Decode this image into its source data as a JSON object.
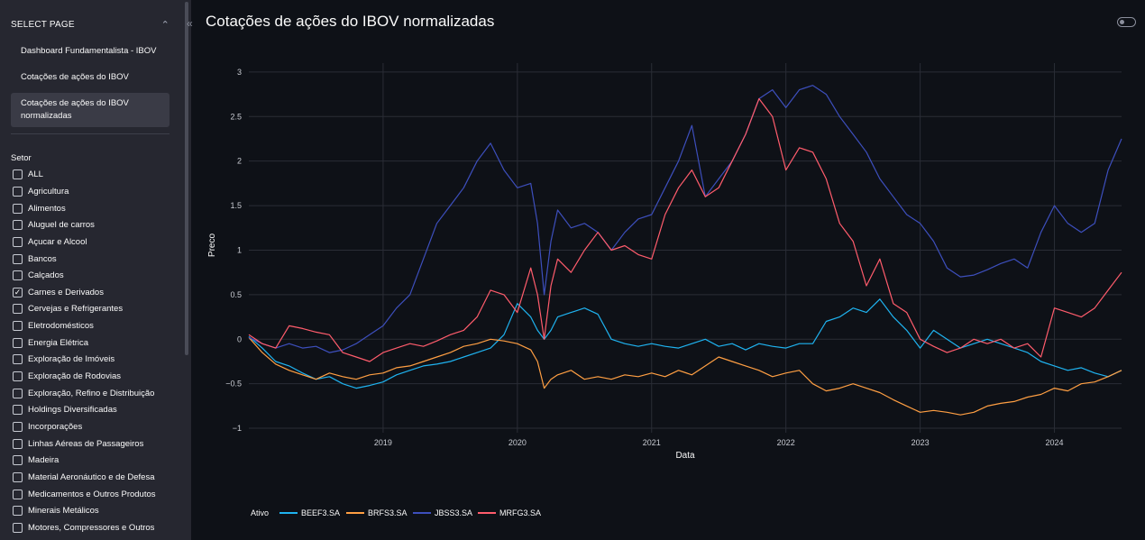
{
  "sidebar": {
    "header": "SELECT PAGE",
    "pages": [
      {
        "label": "Dashboard Fundamentalista - IBOV"
      },
      {
        "label": "Cotações de ações do IBOV"
      },
      {
        "label": "Cotações de ações do IBOV normalizadas"
      }
    ],
    "active_page_index": 2,
    "filter_label": "Setor",
    "sectors": [
      {
        "label": "ALL",
        "checked": false
      },
      {
        "label": "Agricultura",
        "checked": false
      },
      {
        "label": "Alimentos",
        "checked": false
      },
      {
        "label": "Aluguel de carros",
        "checked": false
      },
      {
        "label": "Açucar e Alcool",
        "checked": false
      },
      {
        "label": "Bancos",
        "checked": false
      },
      {
        "label": "Calçados",
        "checked": false
      },
      {
        "label": "Carnes e Derivados",
        "checked": true
      },
      {
        "label": "Cervejas e Refrigerantes",
        "checked": false
      },
      {
        "label": "Eletrodomésticos",
        "checked": false
      },
      {
        "label": "Energia Elétrica",
        "checked": false
      },
      {
        "label": "Exploração de Imóveis",
        "checked": false
      },
      {
        "label": "Exploração de Rodovias",
        "checked": false
      },
      {
        "label": "Exploração, Refino e Distribuição",
        "checked": false
      },
      {
        "label": "Holdings Diversificadas",
        "checked": false
      },
      {
        "label": "Incorporações",
        "checked": false
      },
      {
        "label": "Linhas Aéreas de Passageiros",
        "checked": false
      },
      {
        "label": "Madeira",
        "checked": false
      },
      {
        "label": "Material Aeronáutico e de Defesa",
        "checked": false
      },
      {
        "label": "Medicamentos e Outros Produtos",
        "checked": false
      },
      {
        "label": "Minerais Metálicos",
        "checked": false
      },
      {
        "label": "Motores, Compressores e Outros",
        "checked": false
      }
    ],
    "collapse_icon": "double-chevron-left-icon",
    "checkmark_char": "✓"
  },
  "main": {
    "title": "Cotações de ações do IBOV normalizadas",
    "theme_toggle_on": false
  },
  "colors": {
    "background": "#0e1117",
    "sidebar": "#262730",
    "grid": "#2a2d36"
  },
  "chart_data": {
    "type": "line",
    "xlabel": "Data",
    "ylabel": "Preco",
    "legend_title": "Ativo",
    "legend_position": "bottom-left",
    "grid": true,
    "xlim": [
      2018.0,
      2024.5
    ],
    "ylim": [
      -1.05,
      3.1
    ],
    "x_ticks": [
      2019,
      2020,
      2021,
      2022,
      2023,
      2024
    ],
    "x_tick_labels": [
      "2019",
      "2020",
      "2021",
      "2022",
      "2023",
      "2024"
    ],
    "y_ticks": [
      -1,
      -0.5,
      0,
      0.5,
      1,
      1.5,
      2,
      2.5,
      3
    ],
    "y_tick_labels": [
      "−1",
      "−0.5",
      "0",
      "0.5",
      "1",
      "1.5",
      "2",
      "2.5",
      "3"
    ],
    "series": [
      {
        "name": "BEEF3.SA",
        "color": "#1fb3f0",
        "x": [
          2018.0,
          2018.1,
          2018.2,
          2018.3,
          2018.4,
          2018.5,
          2018.6,
          2018.7,
          2018.8,
          2018.9,
          2019.0,
          2019.1,
          2019.2,
          2019.3,
          2019.4,
          2019.5,
          2019.6,
          2019.7,
          2019.8,
          2019.9,
          2020.0,
          2020.1,
          2020.15,
          2020.2,
          2020.25,
          2020.3,
          2020.4,
          2020.5,
          2020.6,
          2020.7,
          2020.8,
          2020.9,
          2021.0,
          2021.1,
          2021.2,
          2021.3,
          2021.4,
          2021.5,
          2021.6,
          2021.7,
          2021.8,
          2021.9,
          2022.0,
          2022.1,
          2022.2,
          2022.3,
          2022.4,
          2022.5,
          2022.6,
          2022.7,
          2022.8,
          2022.9,
          2023.0,
          2023.1,
          2023.2,
          2023.3,
          2023.4,
          2023.5,
          2023.6,
          2023.7,
          2023.8,
          2023.9,
          2024.0,
          2024.1,
          2024.2,
          2024.3,
          2024.4,
          2024.5
        ],
        "y": [
          0.03,
          -0.1,
          -0.25,
          -0.3,
          -0.38,
          -0.45,
          -0.42,
          -0.5,
          -0.55,
          -0.52,
          -0.48,
          -0.4,
          -0.35,
          -0.3,
          -0.28,
          -0.25,
          -0.2,
          -0.15,
          -0.1,
          0.05,
          0.4,
          0.25,
          0.1,
          0.0,
          0.1,
          0.25,
          0.3,
          0.35,
          0.28,
          0.0,
          -0.05,
          -0.08,
          -0.05,
          -0.08,
          -0.1,
          -0.05,
          0.0,
          -0.08,
          -0.05,
          -0.12,
          -0.05,
          -0.08,
          -0.1,
          -0.05,
          -0.05,
          0.2,
          0.25,
          0.35,
          0.3,
          0.45,
          0.25,
          0.1,
          -0.1,
          0.1,
          0.0,
          -0.1,
          -0.05,
          0.0,
          -0.05,
          -0.1,
          -0.15,
          -0.25,
          -0.3,
          -0.35,
          -0.32,
          -0.38,
          -0.42,
          -0.35
        ]
      },
      {
        "name": "BRFS3.SA",
        "color": "#ff9f43",
        "x": [
          2018.0,
          2018.1,
          2018.2,
          2018.3,
          2018.4,
          2018.5,
          2018.6,
          2018.7,
          2018.8,
          2018.9,
          2019.0,
          2019.1,
          2019.2,
          2019.3,
          2019.4,
          2019.5,
          2019.6,
          2019.7,
          2019.8,
          2019.9,
          2020.0,
          2020.1,
          2020.15,
          2020.2,
          2020.25,
          2020.3,
          2020.4,
          2020.5,
          2020.6,
          2020.7,
          2020.8,
          2020.9,
          2021.0,
          2021.1,
          2021.2,
          2021.3,
          2021.4,
          2021.5,
          2021.6,
          2021.7,
          2021.8,
          2021.9,
          2022.0,
          2022.1,
          2022.2,
          2022.3,
          2022.4,
          2022.5,
          2022.6,
          2022.7,
          2022.8,
          2022.9,
          2023.0,
          2023.1,
          2023.2,
          2023.3,
          2023.4,
          2023.5,
          2023.6,
          2023.7,
          2023.8,
          2023.9,
          2024.0,
          2024.1,
          2024.2,
          2024.3,
          2024.4,
          2024.5
        ],
        "y": [
          0.02,
          -0.15,
          -0.28,
          -0.35,
          -0.4,
          -0.45,
          -0.38,
          -0.42,
          -0.45,
          -0.4,
          -0.38,
          -0.32,
          -0.3,
          -0.25,
          -0.2,
          -0.15,
          -0.08,
          -0.05,
          0.0,
          -0.02,
          -0.05,
          -0.12,
          -0.25,
          -0.55,
          -0.45,
          -0.4,
          -0.35,
          -0.45,
          -0.42,
          -0.45,
          -0.4,
          -0.42,
          -0.38,
          -0.42,
          -0.35,
          -0.4,
          -0.3,
          -0.2,
          -0.25,
          -0.3,
          -0.35,
          -0.42,
          -0.38,
          -0.35,
          -0.5,
          -0.58,
          -0.55,
          -0.5,
          -0.55,
          -0.6,
          -0.68,
          -0.75,
          -0.82,
          -0.8,
          -0.82,
          -0.85,
          -0.82,
          -0.75,
          -0.72,
          -0.7,
          -0.65,
          -0.62,
          -0.55,
          -0.58,
          -0.5,
          -0.48,
          -0.42,
          -0.35
        ]
      },
      {
        "name": "JBSS3.SA",
        "color": "#3d4fbd",
        "x": [
          2018.0,
          2018.1,
          2018.2,
          2018.3,
          2018.4,
          2018.5,
          2018.6,
          2018.7,
          2018.8,
          2018.9,
          2019.0,
          2019.1,
          2019.2,
          2019.3,
          2019.4,
          2019.5,
          2019.6,
          2019.7,
          2019.8,
          2019.9,
          2020.0,
          2020.1,
          2020.15,
          2020.2,
          2020.25,
          2020.3,
          2020.4,
          2020.5,
          2020.6,
          2020.7,
          2020.8,
          2020.9,
          2021.0,
          2021.1,
          2021.2,
          2021.3,
          2021.4,
          2021.5,
          2021.6,
          2021.7,
          2021.8,
          2021.9,
          2022.0,
          2022.1,
          2022.2,
          2022.3,
          2022.4,
          2022.5,
          2022.6,
          2022.7,
          2022.8,
          2022.9,
          2023.0,
          2023.1,
          2023.2,
          2023.3,
          2023.4,
          2023.5,
          2023.6,
          2023.7,
          2023.8,
          2023.9,
          2024.0,
          2024.1,
          2024.2,
          2024.3,
          2024.4,
          2024.5
        ],
        "y": [
          0.02,
          -0.05,
          -0.1,
          -0.05,
          -0.1,
          -0.08,
          -0.15,
          -0.12,
          -0.05,
          0.05,
          0.15,
          0.35,
          0.5,
          0.9,
          1.3,
          1.5,
          1.7,
          2.0,
          2.2,
          1.9,
          1.7,
          1.75,
          1.3,
          0.5,
          1.1,
          1.45,
          1.25,
          1.3,
          1.2,
          1.0,
          1.2,
          1.35,
          1.4,
          1.7,
          2.0,
          2.4,
          1.6,
          1.8,
          2.0,
          2.3,
          2.7,
          2.8,
          2.6,
          2.8,
          2.85,
          2.75,
          2.5,
          2.3,
          2.1,
          1.8,
          1.6,
          1.4,
          1.3,
          1.1,
          0.8,
          0.7,
          0.72,
          0.78,
          0.85,
          0.9,
          0.8,
          1.2,
          1.5,
          1.3,
          1.2,
          1.3,
          1.9,
          2.25
        ]
      },
      {
        "name": "MRFG3.SA",
        "color": "#ff5c6c",
        "x": [
          2018.0,
          2018.1,
          2018.2,
          2018.3,
          2018.4,
          2018.5,
          2018.6,
          2018.7,
          2018.8,
          2018.9,
          2019.0,
          2019.1,
          2019.2,
          2019.3,
          2019.4,
          2019.5,
          2019.6,
          2019.7,
          2019.8,
          2019.9,
          2020.0,
          2020.1,
          2020.15,
          2020.2,
          2020.25,
          2020.3,
          2020.4,
          2020.5,
          2020.6,
          2020.7,
          2020.8,
          2020.9,
          2021.0,
          2021.1,
          2021.2,
          2021.3,
          2021.4,
          2021.5,
          2021.6,
          2021.7,
          2021.8,
          2021.9,
          2022.0,
          2022.1,
          2022.2,
          2022.3,
          2022.4,
          2022.5,
          2022.6,
          2022.7,
          2022.8,
          2022.9,
          2023.0,
          2023.1,
          2023.2,
          2023.3,
          2023.4,
          2023.5,
          2023.6,
          2023.7,
          2023.8,
          2023.9,
          2024.0,
          2024.1,
          2024.2,
          2024.3,
          2024.4,
          2024.5
        ],
        "y": [
          0.05,
          -0.05,
          -0.1,
          0.15,
          0.12,
          0.08,
          0.05,
          -0.15,
          -0.2,
          -0.25,
          -0.15,
          -0.1,
          -0.05,
          -0.08,
          -0.02,
          0.05,
          0.1,
          0.25,
          0.55,
          0.5,
          0.3,
          0.8,
          0.5,
          0.0,
          0.6,
          0.9,
          0.75,
          1.0,
          1.2,
          1.0,
          1.05,
          0.95,
          0.9,
          1.4,
          1.7,
          1.9,
          1.6,
          1.7,
          2.0,
          2.3,
          2.7,
          2.5,
          1.9,
          2.15,
          2.1,
          1.8,
          1.3,
          1.1,
          0.6,
          0.9,
          0.4,
          0.3,
          0.0,
          -0.08,
          -0.15,
          -0.1,
          0.0,
          -0.05,
          0.0,
          -0.1,
          -0.05,
          -0.2,
          0.35,
          0.3,
          0.25,
          0.35,
          0.55,
          0.75
        ]
      }
    ]
  }
}
